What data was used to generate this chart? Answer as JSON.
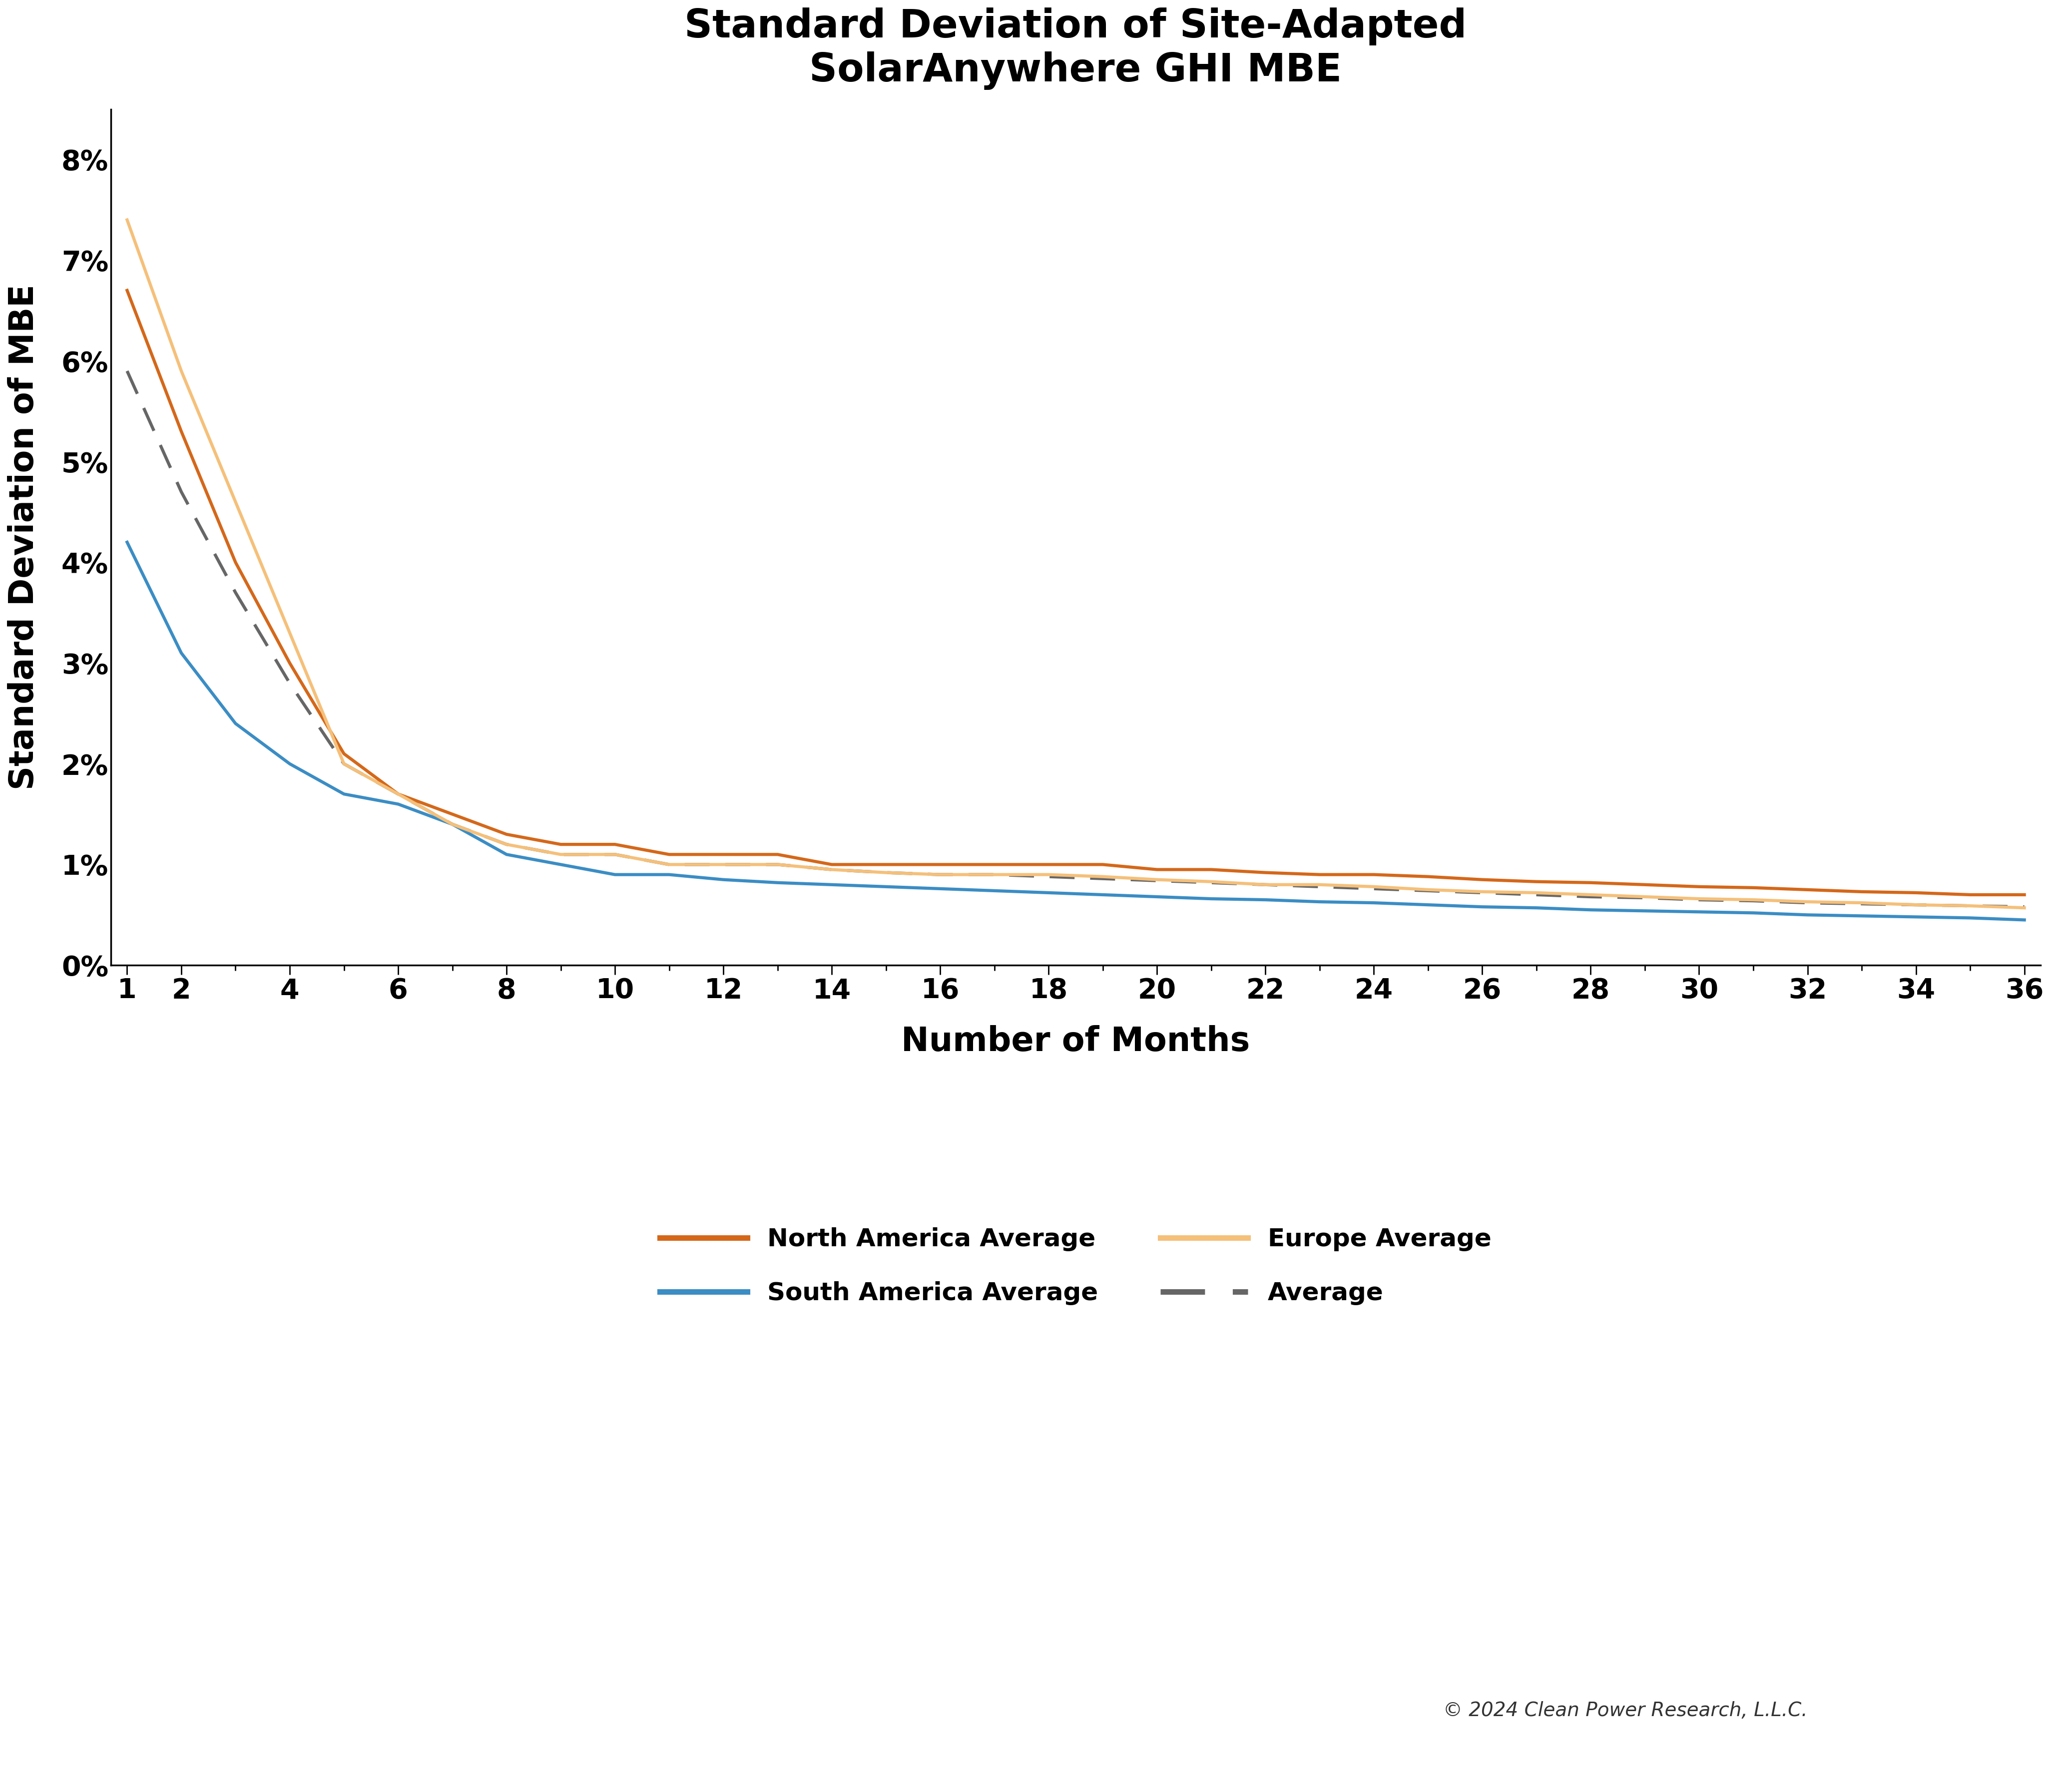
{
  "title": "Standard Deviation of Site-Adapted\nSolarAnywhere GHI MBE",
  "xlabel": "Number of Months",
  "ylabel": "Standard Deviation of MBE",
  "xlim": [
    1,
    36
  ],
  "ylim": [
    0,
    0.085
  ],
  "xticks": [
    1,
    2,
    4,
    6,
    8,
    10,
    12,
    14,
    16,
    18,
    20,
    22,
    24,
    26,
    28,
    30,
    32,
    34,
    36
  ],
  "yticks": [
    0,
    0.01,
    0.02,
    0.03,
    0.04,
    0.05,
    0.06,
    0.07,
    0.08
  ],
  "series": {
    "north_america": {
      "label": "North America Average",
      "color": "#D4681A",
      "linestyle": "solid",
      "linewidth": 4.5,
      "x": [
        1,
        2,
        3,
        4,
        5,
        6,
        7,
        8,
        9,
        10,
        11,
        12,
        13,
        14,
        15,
        16,
        17,
        18,
        19,
        20,
        21,
        22,
        23,
        24,
        25,
        26,
        27,
        28,
        29,
        30,
        31,
        32,
        33,
        34,
        35,
        36
      ],
      "y": [
        0.067,
        0.053,
        0.04,
        0.03,
        0.021,
        0.017,
        0.015,
        0.013,
        0.012,
        0.012,
        0.011,
        0.011,
        0.011,
        0.01,
        0.01,
        0.01,
        0.01,
        0.01,
        0.01,
        0.0095,
        0.0095,
        0.0092,
        0.009,
        0.009,
        0.0088,
        0.0085,
        0.0083,
        0.0082,
        0.008,
        0.0078,
        0.0077,
        0.0075,
        0.0073,
        0.0072,
        0.007,
        0.007
      ]
    },
    "south_america": {
      "label": "South America Average",
      "color": "#3B8DC4",
      "linestyle": "solid",
      "linewidth": 4.5,
      "x": [
        1,
        2,
        3,
        4,
        5,
        6,
        7,
        8,
        9,
        10,
        11,
        12,
        13,
        14,
        15,
        16,
        17,
        18,
        19,
        20,
        21,
        22,
        23,
        24,
        25,
        26,
        27,
        28,
        29,
        30,
        31,
        32,
        33,
        34,
        35,
        36
      ],
      "y": [
        0.042,
        0.031,
        0.024,
        0.02,
        0.017,
        0.016,
        0.014,
        0.011,
        0.01,
        0.009,
        0.009,
        0.0085,
        0.0082,
        0.008,
        0.0078,
        0.0076,
        0.0074,
        0.0072,
        0.007,
        0.0068,
        0.0066,
        0.0065,
        0.0063,
        0.0062,
        0.006,
        0.0058,
        0.0057,
        0.0055,
        0.0054,
        0.0053,
        0.0052,
        0.005,
        0.0049,
        0.0048,
        0.0047,
        0.0045
      ]
    },
    "europe": {
      "label": "Europe Average",
      "color": "#F5C07A",
      "linestyle": "solid",
      "linewidth": 4.5,
      "x": [
        1,
        2,
        3,
        4,
        5,
        6,
        7,
        8,
        9,
        10,
        11,
        12,
        13,
        14,
        15,
        16,
        17,
        18,
        19,
        20,
        21,
        22,
        23,
        24,
        25,
        26,
        27,
        28,
        29,
        30,
        31,
        32,
        33,
        34,
        35,
        36
      ],
      "y": [
        0.074,
        0.059,
        0.046,
        0.033,
        0.02,
        0.017,
        0.014,
        0.012,
        0.011,
        0.011,
        0.01,
        0.01,
        0.01,
        0.0095,
        0.0092,
        0.009,
        0.009,
        0.009,
        0.0088,
        0.0085,
        0.0083,
        0.008,
        0.008,
        0.0078,
        0.0075,
        0.0073,
        0.0072,
        0.007,
        0.0068,
        0.0066,
        0.0065,
        0.0063,
        0.0062,
        0.006,
        0.0059,
        0.0057
      ]
    },
    "average": {
      "label": "Average",
      "color": "#666666",
      "linestyle": "dashed",
      "linewidth": 4.5,
      "x": [
        1,
        2,
        3,
        4,
        5,
        6,
        7,
        8,
        9,
        10,
        11,
        12,
        13,
        14,
        15,
        16,
        17,
        18,
        19,
        20,
        21,
        22,
        23,
        24,
        25,
        26,
        27,
        28,
        29,
        30,
        31,
        32,
        33,
        34,
        35,
        36
      ],
      "y": [
        0.059,
        0.047,
        0.037,
        0.028,
        0.02,
        0.017,
        0.014,
        0.012,
        0.011,
        0.011,
        0.01,
        0.01,
        0.01,
        0.0095,
        0.0092,
        0.009,
        0.009,
        0.0088,
        0.0086,
        0.0084,
        0.0082,
        0.008,
        0.0078,
        0.0076,
        0.0074,
        0.0072,
        0.007,
        0.0068,
        0.0067,
        0.0065,
        0.0064,
        0.0062,
        0.0061,
        0.006,
        0.0059,
        0.0058
      ]
    }
  },
  "legend_fontsize": 36,
  "legend_linewidth": 8,
  "title_fontsize": 56,
  "axis_label_fontsize": 48,
  "tick_fontsize": 40,
  "copyright_text": "© 2024 Clean Power Research, L.L.C.",
  "copyright_fontsize": 28,
  "background_color": "#ffffff",
  "spine_color": "#000000"
}
